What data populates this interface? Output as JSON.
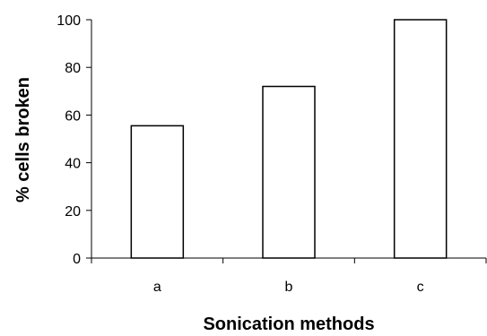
{
  "chart_data": {
    "type": "bar",
    "title": "",
    "xlabel": "Sonication methods",
    "ylabel": "% cells broken",
    "categories": [
      "a",
      "b",
      "c"
    ],
    "values": [
      55.5,
      72,
      100
    ],
    "ylim": [
      0,
      100
    ],
    "yticks": [
      0,
      20,
      40,
      60,
      80,
      100
    ],
    "grid": false,
    "legend": "none",
    "bar_fill": "#ffffff",
    "bar_stroke": "#000000"
  }
}
